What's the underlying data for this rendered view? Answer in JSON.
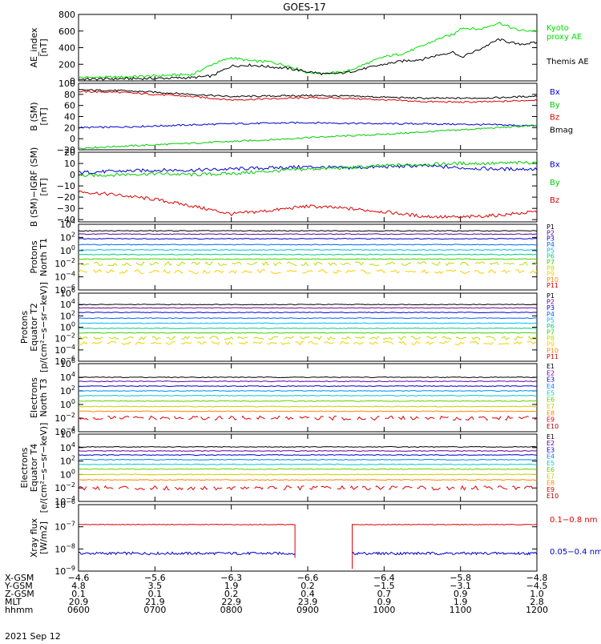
{
  "title": "GOES-17",
  "date": "2021 Sep 12",
  "chart_data": [
    {
      "type": "line",
      "ylabel": [
        "AE_index",
        "[nT]"
      ],
      "ylim": [
        0,
        800
      ],
      "ticks": [
        "0",
        "200",
        "400",
        "600",
        "800"
      ],
      "tick_values": [
        0,
        200,
        400,
        600,
        800
      ],
      "x": [
        600,
        630,
        700,
        730,
        745,
        800,
        815,
        830,
        845,
        900,
        915,
        930,
        945,
        1000,
        1015,
        1030,
        1045,
        1055,
        1100,
        1115,
        1130,
        1145,
        1200
      ],
      "series": [
        {
          "name": "Kyoto",
          "label_lines": [
            "Kyoto",
            "proxy AE"
          ],
          "color": "#00e000",
          "values": [
            40,
            45,
            60,
            80,
            200,
            280,
            240,
            230,
            180,
            100,
            90,
            110,
            200,
            290,
            330,
            420,
            520,
            560,
            640,
            620,
            700,
            610,
            600
          ]
        },
        {
          "name": "Themis AE",
          "label_lines": [
            "Themis AE"
          ],
          "color": "#000000",
          "values": [
            20,
            25,
            30,
            40,
            60,
            180,
            190,
            170,
            150,
            110,
            80,
            100,
            150,
            200,
            240,
            260,
            320,
            350,
            280,
            380,
            500,
            440,
            460
          ]
        }
      ]
    },
    {
      "type": "line",
      "ylabel": [
        "B (SM)",
        "[nT]"
      ],
      "ylim": [
        -20,
        100
      ],
      "ticks": [
        "−20",
        "0",
        "20",
        "40",
        "60",
        "80",
        "100"
      ],
      "tick_values": [
        -20,
        0,
        20,
        40,
        60,
        80,
        100
      ],
      "x": [
        600,
        630,
        700,
        730,
        800,
        830,
        900,
        930,
        1000,
        1030,
        1100,
        1130,
        1200
      ],
      "series": [
        {
          "name": "Bx",
          "color": "#0000cc",
          "values": [
            20,
            21,
            23,
            25,
            27,
            28,
            29,
            28,
            27,
            27,
            26,
            25,
            23
          ]
        },
        {
          "name": "By",
          "color": "#00cc00",
          "values": [
            -17,
            -14,
            -11,
            -8,
            -5,
            -2,
            2,
            5,
            8,
            12,
            16,
            20,
            24
          ]
        },
        {
          "name": "Bz",
          "color": "#dd0000",
          "values": [
            85,
            84,
            80,
            76,
            70,
            72,
            74,
            73,
            70,
            67,
            66,
            67,
            70
          ]
        },
        {
          "name": "Bmag",
          "color": "#000000",
          "values": [
            88,
            87,
            84,
            80,
            76,
            77,
            78,
            77,
            75,
            73,
            73,
            74,
            77
          ]
        }
      ]
    },
    {
      "type": "line",
      "ylabel": [
        "B (SM)−IGRF (SM)",
        "[nT]"
      ],
      "ylim": [
        -42,
        20
      ],
      "ticks": [
        "−40",
        "−30",
        "−20",
        "−10",
        "0",
        "10",
        "20"
      ],
      "tick_values": [
        -40,
        -30,
        -20,
        -10,
        0,
        10,
        20
      ],
      "x": [
        600,
        630,
        700,
        730,
        800,
        830,
        900,
        930,
        1000,
        1030,
        1100,
        1130,
        1200
      ],
      "series": [
        {
          "name": "Bx",
          "color": "#0000cc",
          "values": [
            2,
            3,
            4,
            4,
            5,
            6,
            7,
            6,
            7,
            8,
            6,
            5,
            5
          ]
        },
        {
          "name": "By",
          "color": "#00cc00",
          "values": [
            -1,
            0,
            1,
            0,
            1,
            3,
            5,
            6,
            8,
            9,
            10,
            10,
            11
          ]
        },
        {
          "name": "Bz",
          "color": "#dd0000",
          "values": [
            -15,
            -18,
            -22,
            -28,
            -35,
            -32,
            -28,
            -30,
            -33,
            -37,
            -38,
            -36,
            -33
          ]
        }
      ]
    },
    {
      "type": "line",
      "log": true,
      "ylabel": [
        "Protons",
        "North T1"
      ],
      "ylim_exp": [
        -6,
        4
      ],
      "ticks": [
        {
          "m": "10",
          "e": "4",
          "v": 4
        },
        {
          "m": "10",
          "e": "2",
          "v": 2
        },
        {
          "m": "10",
          "e": "0",
          "v": 0
        },
        {
          "m": "10",
          "e": "−2",
          "v": -2
        },
        {
          "m": "10",
          "e": "−4",
          "v": -4
        },
        {
          "m": "10",
          "e": "−6",
          "v": -6
        }
      ],
      "series": [
        {
          "name": "P1",
          "color": "#000000",
          "log_level": 3.0
        },
        {
          "name": "P2",
          "color": "#660099",
          "log_level": 2.5
        },
        {
          "name": "P3",
          "color": "#0000cc",
          "log_level": 1.8
        },
        {
          "name": "P4",
          "color": "#0066ff",
          "log_level": 0.9
        },
        {
          "name": "P5",
          "color": "#00bbee",
          "log_level": 0.1
        },
        {
          "name": "P6",
          "color": "#00cc88",
          "log_level": -0.6
        },
        {
          "name": "P7",
          "color": "#44cc00",
          "log_level": -1.3
        },
        {
          "name": "P8",
          "color": "#bbdd00",
          "log_level": -2.0
        },
        {
          "name": "P9",
          "color": "#ffcc00",
          "log_level": -3.2
        },
        {
          "name": "P10",
          "color": "#ff8800",
          "log_level": null
        },
        {
          "name": "P11",
          "color": "#dd0000",
          "log_level": null
        }
      ]
    },
    {
      "type": "line",
      "log": true,
      "ylabel": [
        "Protons",
        "Equator T2",
        "[p/(cm²−s−sr−keV)]"
      ],
      "ylim_exp": [
        -6,
        6
      ],
      "ticks": [
        {
          "m": "10",
          "e": "6",
          "v": 6
        },
        {
          "m": "10",
          "e": "4",
          "v": 4
        },
        {
          "m": "10",
          "e": "2",
          "v": 2
        },
        {
          "m": "10",
          "e": "0",
          "v": 0
        },
        {
          "m": "10",
          "e": "−2",
          "v": -2
        },
        {
          "m": "10",
          "e": "−4",
          "v": -4
        },
        {
          "m": "10",
          "e": "−6",
          "v": -6
        }
      ],
      "series": [
        {
          "name": "P1",
          "color": "#000000",
          "log_level": 4.0
        },
        {
          "name": "P2",
          "color": "#660099",
          "log_level": 3.4
        },
        {
          "name": "P3",
          "color": "#0000cc",
          "log_level": 2.6
        },
        {
          "name": "P4",
          "color": "#0066ff",
          "log_level": 1.6
        },
        {
          "name": "P5",
          "color": "#00bbee",
          "log_level": 0.7
        },
        {
          "name": "P6",
          "color": "#00cc88",
          "log_level": -0.2
        },
        {
          "name": "P7",
          "color": "#44cc00",
          "log_level": -1.0
        },
        {
          "name": "P8",
          "color": "#bbdd00",
          "log_level": -1.9
        },
        {
          "name": "P9",
          "color": "#ffcc00",
          "log_level": -2.8
        },
        {
          "name": "P10",
          "color": "#ff8800",
          "log_level": null
        },
        {
          "name": "P11",
          "color": "#dd0000",
          "log_level": null
        }
      ]
    },
    {
      "type": "line",
      "log": true,
      "ylabel": [
        "Electrons",
        "North T3"
      ],
      "ylim_exp": [
        -4,
        6
      ],
      "ticks": [
        {
          "m": "10",
          "e": "6",
          "v": 6
        },
        {
          "m": "10",
          "e": "4",
          "v": 4
        },
        {
          "m": "10",
          "e": "2",
          "v": 2
        },
        {
          "m": "10",
          "e": "0",
          "v": 0
        },
        {
          "m": "10",
          "e": "−2",
          "v": -2
        },
        {
          "m": "10",
          "e": "−4",
          "v": -4
        }
      ],
      "series": [
        {
          "name": "E1",
          "color": "#000000",
          "log_level": 4.0
        },
        {
          "name": "E2",
          "color": "#660099",
          "log_level": 3.4
        },
        {
          "name": "E3",
          "color": "#0000cc",
          "log_level": 2.7
        },
        {
          "name": "E4",
          "color": "#0088ff",
          "log_level": 2.0
        },
        {
          "name": "E5",
          "color": "#00cccc",
          "log_level": 1.3
        },
        {
          "name": "E6",
          "color": "#66cc00",
          "log_level": 0.5
        },
        {
          "name": "E7",
          "color": "#cccc00",
          "log_level": -0.3
        },
        {
          "name": "E8",
          "color": "#ff8800",
          "log_level": -1.0
        },
        {
          "name": "E9",
          "color": "#dd0000",
          "log_level": -2.0
        },
        {
          "name": "E10",
          "color": "#aa0000",
          "log_level": null
        }
      ]
    },
    {
      "type": "line",
      "log": true,
      "ylabel": [
        "Electrons",
        "Equator T4",
        "[e/(cm²−s−sr−keV)]"
      ],
      "ylim_exp": [
        -4,
        6
      ],
      "ticks": [
        {
          "m": "10",
          "e": "6",
          "v": 6
        },
        {
          "m": "10",
          "e": "4",
          "v": 4
        },
        {
          "m": "10",
          "e": "2",
          "v": 2
        },
        {
          "m": "10",
          "e": "0",
          "v": 0
        },
        {
          "m": "10",
          "e": "−2",
          "v": -2
        },
        {
          "m": "10",
          "e": "−4",
          "v": -4
        }
      ],
      "series": [
        {
          "name": "E1",
          "color": "#000000",
          "log_level": 4.1
        },
        {
          "name": "E2",
          "color": "#660099",
          "log_level": 3.5
        },
        {
          "name": "E3",
          "color": "#0000cc",
          "log_level": 2.9
        },
        {
          "name": "E4",
          "color": "#0088ff",
          "log_level": 2.2
        },
        {
          "name": "E5",
          "color": "#00cccc",
          "log_level": 1.5
        },
        {
          "name": "E6",
          "color": "#66cc00",
          "log_level": 0.8
        },
        {
          "name": "E7",
          "color": "#cccc00",
          "log_level": 0.0
        },
        {
          "name": "E8",
          "color": "#ff8800",
          "log_level": -0.8
        },
        {
          "name": "E9",
          "color": "#dd0000",
          "log_level": -2.0
        },
        {
          "name": "E10",
          "color": "#aa0000",
          "log_level": null
        }
      ]
    },
    {
      "type": "line",
      "log": true,
      "ylabel": [
        "Xray flux",
        "[W/m2]"
      ],
      "ylim_exp": [
        -9,
        -6
      ],
      "ticks": [
        {
          "m": "10",
          "e": "−6",
          "v": -6
        },
        {
          "m": "10",
          "e": "−7",
          "v": -7
        },
        {
          "m": "10",
          "e": "−8",
          "v": -8
        },
        {
          "m": "10",
          "e": "−9",
          "v": -9
        }
      ],
      "gap": [
        850,
        935
      ],
      "series": [
        {
          "name": "0.1−0.8 nm",
          "color": "#dd0000",
          "log_level": -6.9
        },
        {
          "name": "0.05−0.4 nm",
          "color": "#0000cc",
          "log_level": -8.2
        }
      ]
    }
  ],
  "x_axis": {
    "xlim": [
      600,
      1200
    ],
    "row_labels": [
      "X-GSM",
      "Y-GSM",
      "Z-GSM",
      "MLT",
      "hhmm"
    ],
    "columns": [
      [
        "−4.6",
        "4.8",
        "0.1",
        "20.9",
        "0600"
      ],
      [
        "−5.6",
        "3.5",
        "0.1",
        "21.9",
        "0700"
      ],
      [
        "−6.3",
        "1.9",
        "0.2",
        "22.9",
        "0800"
      ],
      [
        "−6.6",
        "0.2",
        "0.4",
        "23.9",
        "0900"
      ],
      [
        "−6.4",
        "−1.5",
        "0.7",
        "0.9",
        "1000"
      ],
      [
        "−5.8",
        "−3.1",
        "0.9",
        "1.9",
        "1100"
      ],
      [
        "−4.8",
        "−4.5",
        "1.0",
        "2.8",
        "1200"
      ]
    ]
  }
}
